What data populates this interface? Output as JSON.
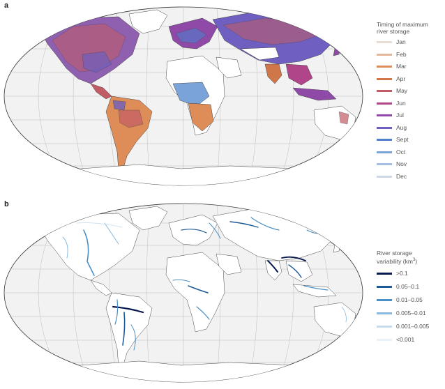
{
  "panel_a": {
    "label": "a",
    "legend_title_line1": "Timing of maximum",
    "legend_title_line2": "river storage",
    "months": [
      {
        "label": "Jan",
        "color": "#e8ddd4"
      },
      {
        "label": "Feb",
        "color": "#e4b89a"
      },
      {
        "label": "Mar",
        "color": "#de8d58"
      },
      {
        "label": "Apr",
        "color": "#d0774a"
      },
      {
        "label": "May",
        "color": "#c25c64"
      },
      {
        "label": "Jun",
        "color": "#b0458a"
      },
      {
        "label": "Jul",
        "color": "#8f4aa8"
      },
      {
        "label": "Aug",
        "color": "#6e5fc0"
      },
      {
        "label": "Sept",
        "color": "#4f7fcd"
      },
      {
        "label": "Oct",
        "color": "#7aa3da"
      },
      {
        "label": "Nov",
        "color": "#a7bde2"
      },
      {
        "label": "Dec",
        "color": "#cdd7e6"
      }
    ]
  },
  "panel_b": {
    "label": "b",
    "legend_title_line1": "River storage",
    "legend_title_line2": "variability (km",
    "legend_title_sup": "3",
    "legend_title_end": ")",
    "classes": [
      {
        "label": ">0.1",
        "color": "#08194f"
      },
      {
        "label": "0.05–0.1",
        "color": "#1e5a96"
      },
      {
        "label": "0.01–0.05",
        "color": "#4a8fc5"
      },
      {
        "label": "0.005–0.01",
        "color": "#8ab8dc"
      },
      {
        "label": "0.001–0.005",
        "color": "#c3dbec"
      },
      {
        "label": "<0.001",
        "color": "#e8f2f8"
      }
    ]
  }
}
